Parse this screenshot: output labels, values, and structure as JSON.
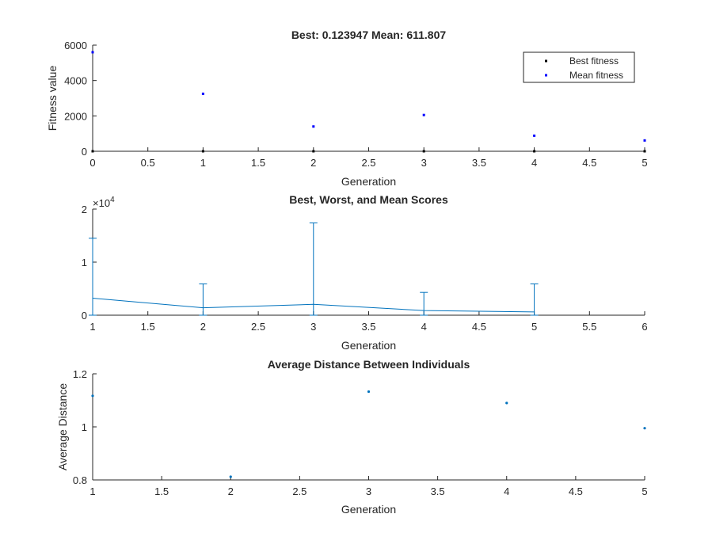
{
  "chart_data": [
    {
      "type": "scatter",
      "title": "Best: 0.123947 Mean: 611.807",
      "xlabel": "Generation",
      "ylabel": "Fitness value",
      "xlim": [
        0,
        5
      ],
      "ylim": [
        0,
        6000
      ],
      "xticks": [
        "0",
        "0.5",
        "1",
        "1.5",
        "2",
        "2.5",
        "3",
        "3.5",
        "4",
        "4.5",
        "5"
      ],
      "yticks": [
        "0",
        "2000",
        "4000",
        "6000"
      ],
      "legend_position": "top-right",
      "series": [
        {
          "name": "Best fitness",
          "color": "#000000",
          "x": [
            0,
            1,
            2,
            3,
            4,
            5
          ],
          "y": [
            0.5,
            0.4,
            0.3,
            0.2,
            0.15,
            0.123947
          ]
        },
        {
          "name": "Mean fitness",
          "color": "#0000ff",
          "x": [
            0,
            1,
            2,
            3,
            4,
            5
          ],
          "y": [
            5600,
            3250,
            1400,
            2050,
            880,
            611.807
          ]
        }
      ]
    },
    {
      "type": "line",
      "subtype": "errorbar",
      "title": "Best, Worst, and Mean Scores",
      "xlabel": "Generation",
      "ylabel": "",
      "xlim": [
        1,
        6
      ],
      "ylim": [
        0,
        20000
      ],
      "y_exponent_label": "×10",
      "y_exponent_power": "4",
      "xticks": [
        "1",
        "1.5",
        "2",
        "2.5",
        "3",
        "3.5",
        "4",
        "4.5",
        "5",
        "5.5",
        "6"
      ],
      "yticks": [
        "0",
        "1",
        "2"
      ],
      "color": "#0072bd",
      "x": [
        1,
        2,
        3,
        4,
        5
      ],
      "mean": [
        3200,
        1400,
        2050,
        880,
        612
      ],
      "best": [
        0,
        0,
        0,
        0,
        0
      ],
      "worst": [
        14500,
        5900,
        17400,
        4300,
        5900
      ]
    },
    {
      "type": "scatter",
      "title": "Average Distance Between Individuals",
      "xlabel": "Generation",
      "ylabel": "Average Distance",
      "xlim": [
        1,
        5
      ],
      "ylim": [
        0.8,
        1.2
      ],
      "xticks": [
        "1",
        "1.5",
        "2",
        "2.5",
        "3",
        "3.5",
        "4",
        "4.5",
        "5"
      ],
      "yticks": [
        "0.8",
        "1",
        "1.2"
      ],
      "color": "#0072bd",
      "x": [
        1,
        2,
        3,
        4,
        5
      ],
      "y": [
        1.117,
        0.812,
        1.133,
        1.09,
        0.995
      ]
    }
  ]
}
